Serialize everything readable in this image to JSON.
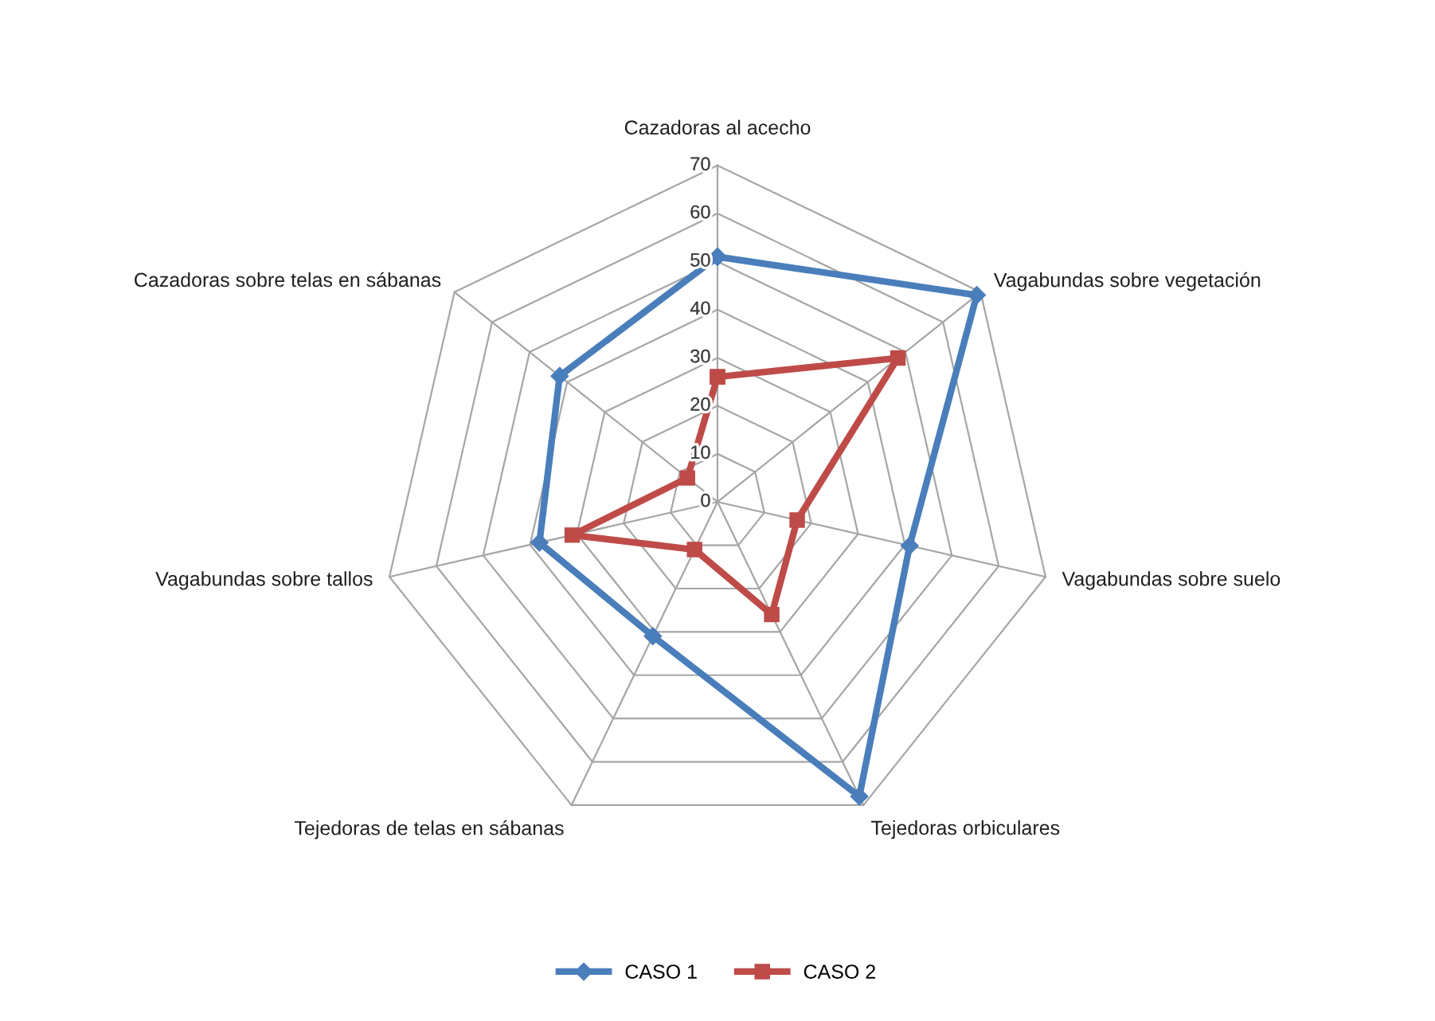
{
  "chart_data": {
    "type": "radar",
    "categories": [
      "Cazadoras al acecho",
      "Vagabundas sobre vegetación",
      "Vagabundas sobre suelo",
      "Tejedoras orbiculares",
      "Tejedoras de telas en sábanas",
      "Vagabundas sobre tallos",
      "Cazadoras sobre telas en sábanas"
    ],
    "series": [
      {
        "name": "CASO 1",
        "color": "#4a7ebb",
        "marker": "diamond",
        "values": [
          51,
          69,
          41,
          68,
          31,
          38,
          42
        ]
      },
      {
        "name": "CASO 2",
        "color": "#be4b48",
        "marker": "square",
        "values": [
          26,
          48,
          17,
          26,
          11,
          31,
          8
        ]
      }
    ],
    "ylim": [
      0,
      70
    ],
    "yticks": [
      0,
      10,
      20,
      30,
      40,
      50,
      60,
      70
    ],
    "grid": true,
    "legend": "bottom"
  }
}
